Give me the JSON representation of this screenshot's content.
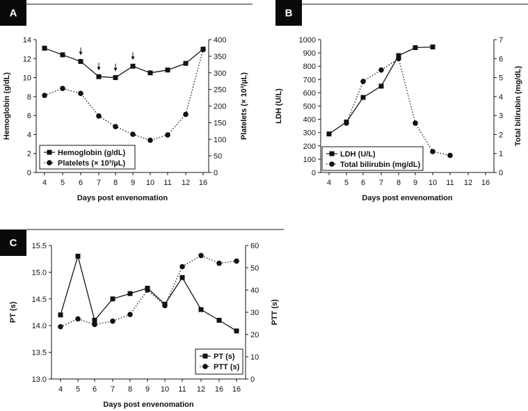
{
  "chart_data": [
    {
      "panel": "A",
      "type": "line",
      "xlabel": "Days post envenomation",
      "categories": [
        "4",
        "5",
        "6",
        "7",
        "8",
        "9",
        "10",
        "11",
        "12",
        "16"
      ],
      "left_axis": {
        "label": "Hemoglobin (g/dL)",
        "ylim": [
          0,
          14
        ],
        "ticks": [
          0,
          2,
          4,
          6,
          8,
          10,
          12,
          14
        ]
      },
      "right_axis": {
        "label": "Platelets (× 10³/µL)",
        "ylim": [
          0,
          400
        ],
        "ticks": [
          0,
          50,
          100,
          150,
          200,
          250,
          300,
          350,
          400
        ]
      },
      "series": [
        {
          "name": "Hemoglobin (g/dL)",
          "marker": "square",
          "line": "solid",
          "axis": "left",
          "values": [
            13.1,
            12.4,
            11.7,
            10.1,
            10.0,
            11.2,
            10.5,
            10.8,
            11.5,
            13.0
          ]
        },
        {
          "name": "Platelets (× 10³/µL)",
          "marker": "circle",
          "line": "dotted",
          "axis": "right",
          "values": [
            232,
            253,
            238,
            170,
            138,
            115,
            97,
            113,
            175,
            370
          ]
        }
      ],
      "annotations": [
        {
          "type": "down-arrow",
          "x": "6",
          "y": 11.7
        },
        {
          "type": "down-arrow",
          "x": "7",
          "y": 10.1
        },
        {
          "type": "down-arrow",
          "x": "8",
          "y": 10.0
        },
        {
          "type": "down-arrow",
          "x": "9",
          "y": 11.2
        }
      ],
      "legend_position": "bottom-left"
    },
    {
      "panel": "B",
      "type": "line",
      "xlabel": "Days post envenomation",
      "categories": [
        "4",
        "5",
        "6",
        "7",
        "8",
        "9",
        "10",
        "11",
        "12",
        "16"
      ],
      "left_axis": {
        "label": "LDH (U/L)",
        "ylim": [
          0,
          1000
        ],
        "ticks": [
          0,
          100,
          200,
          300,
          400,
          500,
          600,
          700,
          800,
          900,
          1000
        ]
      },
      "right_axis": {
        "label": "Total bilirubin (mg/dL)",
        "ylim": [
          0,
          7
        ],
        "ticks": [
          0,
          1,
          2,
          3,
          4,
          5,
          6,
          7
        ]
      },
      "series": [
        {
          "name": "LDH (U/L)",
          "marker": "square",
          "line": "solid",
          "axis": "left",
          "values": [
            290,
            380,
            565,
            650,
            880,
            940,
            945,
            null,
            null,
            null
          ]
        },
        {
          "name": "Total bilirubin (mg/dL)",
          "marker": "circle",
          "line": "dotted",
          "axis": "right",
          "values": [
            null,
            2.6,
            4.8,
            5.4,
            6.0,
            2.6,
            1.1,
            0.9,
            null,
            null
          ]
        }
      ],
      "legend_position": "bottom-left"
    },
    {
      "panel": "C",
      "type": "line",
      "xlabel": "Days post envenomation",
      "categories": [
        "4",
        "5",
        "6",
        "7",
        "8",
        "9",
        "10",
        "11",
        "12",
        "16",
        "16"
      ],
      "left_axis": {
        "label": "PT (s)",
        "ylim": [
          13.0,
          15.5
        ],
        "ticks": [
          "13.0",
          "13.5",
          "14.0",
          "14.5",
          "15.0",
          "15.5"
        ]
      },
      "right_axis": {
        "label": "PTT (s)",
        "ylim": [
          0,
          60
        ],
        "ticks": [
          0,
          10,
          20,
          30,
          40,
          50,
          60
        ]
      },
      "series": [
        {
          "name": "PT (s)",
          "marker": "square",
          "line": "solid",
          "axis": "left",
          "values": [
            14.2,
            15.3,
            14.1,
            14.5,
            14.6,
            14.7,
            14.4,
            14.9,
            14.3,
            14.1,
            13.9
          ]
        },
        {
          "name": "PTT (s)",
          "marker": "circle",
          "line": "dotted",
          "axis": "right",
          "values": [
            23.5,
            27,
            24.5,
            26,
            29,
            40,
            33,
            50.5,
            55.5,
            52,
            53
          ]
        }
      ],
      "legend_position": "bottom-right"
    }
  ]
}
